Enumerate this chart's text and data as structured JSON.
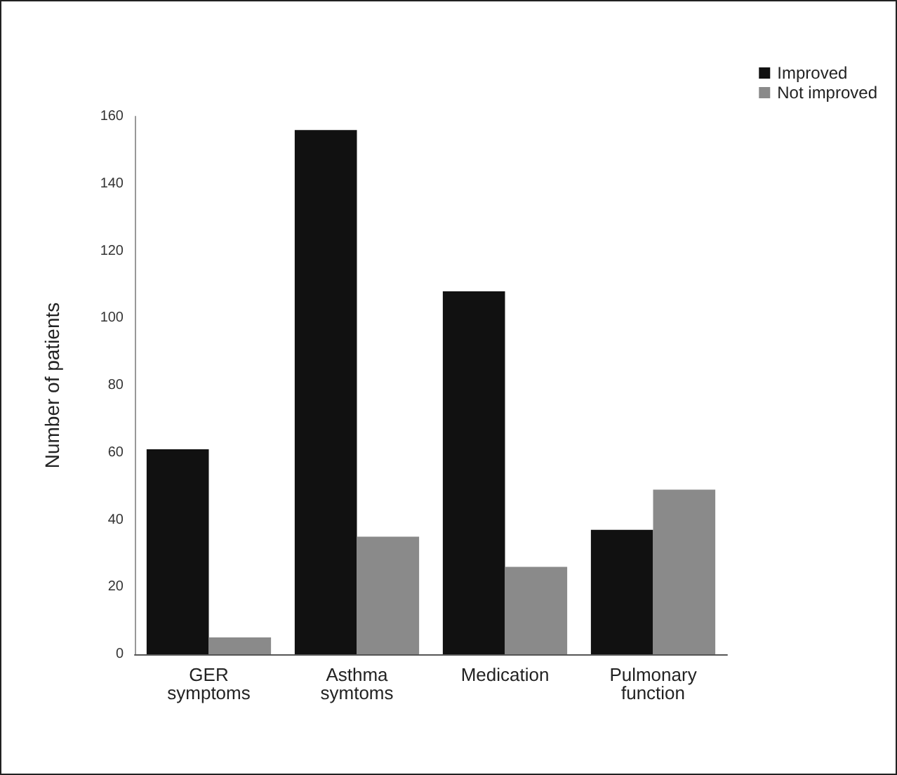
{
  "chart_data": {
    "type": "bar",
    "ylabel": "Number of patients",
    "categories": [
      "GER\nsymptoms",
      "Asthma\nsymtoms",
      "Medication",
      "Pulmonary\nfunction"
    ],
    "series": [
      {
        "name": "Improved",
        "color": "#111111",
        "values": [
          61,
          156,
          108,
          37
        ]
      },
      {
        "name": "Not improved",
        "color": "#8a8a8a",
        "values": [
          5,
          35,
          26,
          49
        ]
      }
    ],
    "ylim": [
      0,
      160
    ],
    "yticks": [
      0,
      20,
      40,
      60,
      80,
      100,
      120,
      140,
      160
    ],
    "grid": false,
    "legend": "top right"
  }
}
